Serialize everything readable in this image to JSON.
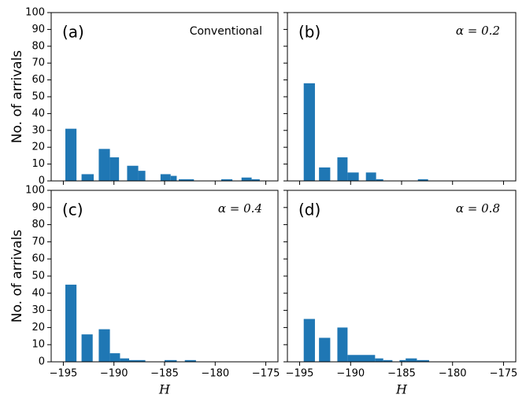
{
  "chart_data": [
    {
      "type": "histogram",
      "panel_label": "(a)",
      "annotation": "Conventional",
      "annotation_style": "sans",
      "ylabel": "No. of arrivals",
      "color": "#1f77b4",
      "bins": [
        -194.8,
        -193.7,
        -193.2,
        -192.0,
        -191.5,
        -190.4,
        -189.5,
        -188.7,
        -187.6,
        -186.9,
        -185.4,
        -184.4,
        -183.8,
        -183.6,
        -182.1,
        -179.4,
        -178.3,
        -177.4,
        -176.4,
        -175.6
      ],
      "counts": [
        31,
        0,
        4,
        0,
        19,
        14,
        0,
        9,
        6,
        0,
        4,
        3,
        0,
        1,
        0,
        1,
        0,
        2,
        1
      ],
      "xlim": [
        -196.2,
        -173.8
      ],
      "ylim": [
        0,
        100
      ],
      "xticks": [
        -195,
        -190,
        -185,
        -180,
        -175
      ],
      "show_xtick_labels": false,
      "yticks": [
        0,
        10,
        20,
        30,
        40,
        50,
        60,
        70,
        80,
        90,
        100
      ],
      "show_ytick_labels": true
    },
    {
      "type": "histogram",
      "panel_label": "(b)",
      "annotation": "α = 0.2",
      "annotation_style": "serif",
      "color": "#1f77b4",
      "bins": [
        -194.6,
        -193.5,
        -193.1,
        -192.0,
        -191.3,
        -190.3,
        -189.2,
        -188.5,
        -187.5,
        -186.8,
        -183.4,
        -182.4
      ],
      "counts": [
        58,
        0,
        8,
        0,
        14,
        5,
        0,
        5,
        1,
        0,
        1
      ],
      "xlim": [
        -196.2,
        -173.8
      ],
      "ylim": [
        0,
        100
      ],
      "xticks": [
        -195,
        -190,
        -185,
        -180,
        -175
      ],
      "show_xtick_labels": false,
      "yticks": [
        0,
        10,
        20,
        30,
        40,
        50,
        60,
        70,
        80,
        90,
        100
      ],
      "show_ytick_labels": false
    },
    {
      "type": "histogram",
      "panel_label": "(c)",
      "annotation": "α = 0.4",
      "annotation_style": "serif",
      "ylabel": "No. of arrivals",
      "xlabel": "H",
      "color": "#1f77b4",
      "bins": [
        -194.8,
        -193.7,
        -193.2,
        -192.1,
        -191.5,
        -190.4,
        -189.4,
        -188.5,
        -186.9,
        -185.0,
        -183.8,
        -183.0,
        -181.9
      ],
      "counts": [
        45,
        0,
        16,
        0,
        19,
        5,
        2,
        1,
        0,
        1,
        0,
        1
      ],
      "xlim": [
        -196.2,
        -173.8
      ],
      "ylim": [
        0,
        100
      ],
      "xticks": [
        {
          "value": -195,
          "label": "−195"
        },
        {
          "value": -190,
          "label": "−190"
        },
        {
          "value": -185,
          "label": "−185"
        },
        {
          "value": -180,
          "label": "−180"
        },
        {
          "value": -175,
          "label": "−175"
        }
      ],
      "show_xtick_labels": true,
      "yticks": [
        0,
        10,
        20,
        30,
        40,
        50,
        60,
        70,
        80,
        90,
        100
      ],
      "show_ytick_labels": true
    },
    {
      "type": "histogram",
      "panel_label": "(d)",
      "annotation": "α = 0.8",
      "annotation_style": "serif",
      "xlabel": "H",
      "color": "#1f77b4",
      "bins": [
        -194.6,
        -193.5,
        -193.1,
        -192.0,
        -191.3,
        -190.3,
        -187.6,
        -186.8,
        -185.9,
        -185.2,
        -184.6,
        -183.5,
        -182.3
      ],
      "counts": [
        25,
        0,
        14,
        0,
        20,
        4,
        2,
        1,
        0,
        1,
        2,
        1
      ],
      "xlim": [
        -196.2,
        -173.8
      ],
      "ylim": [
        0,
        100
      ],
      "xticks": [
        {
          "value": -195,
          "label": "−195"
        },
        {
          "value": -190,
          "label": "−190"
        },
        {
          "value": -185,
          "label": "−185"
        },
        {
          "value": -180,
          "label": "−180"
        },
        {
          "value": -175,
          "label": "−175"
        }
      ],
      "show_xtick_labels": true,
      "yticks": [
        0,
        10,
        20,
        30,
        40,
        50,
        60,
        70,
        80,
        90,
        100
      ],
      "show_ytick_labels": false
    }
  ]
}
